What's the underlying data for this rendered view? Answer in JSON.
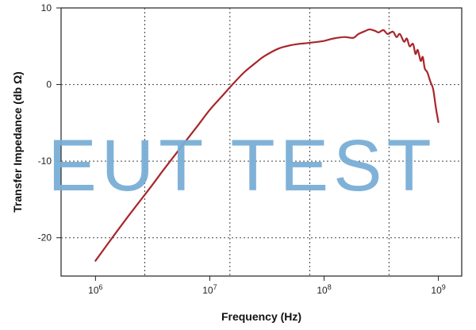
{
  "watermark": "EUT TEST",
  "chart_data": {
    "type": "line",
    "xlabel": "Frequency (Hz)",
    "ylabel": "Transfer Impedance (db Ω)",
    "x_scale": "log",
    "xlim": [
      500000,
      1600000000
    ],
    "ylim": [
      -25,
      10
    ],
    "x_ticks": [
      {
        "value": 1000000,
        "base": "10",
        "exp": "6"
      },
      {
        "value": 10000000,
        "base": "10",
        "exp": "7"
      },
      {
        "value": 100000000,
        "base": "10",
        "exp": "8"
      },
      {
        "value": 1000000000,
        "base": "10",
        "exp": "9"
      }
    ],
    "y_ticks": [
      {
        "value": 10,
        "label": "10"
      },
      {
        "value": 0,
        "label": "0"
      },
      {
        "value": -10,
        "label": "-10"
      },
      {
        "value": -20,
        "label": "-20"
      }
    ],
    "grid": true,
    "grid_x": [
      2700000,
      15000000,
      75000000,
      370000000
    ],
    "grid_y": [
      0,
      -10,
      -20
    ],
    "series": [
      {
        "color": "#a8262b",
        "x": [
          1000000,
          1500000,
          2000000,
          3000000,
          4000000,
          6000000,
          8000000,
          10000000,
          13000000,
          16000000,
          20000000,
          25000000,
          30000000,
          40000000,
          50000000,
          60000000,
          70000000,
          80000000,
          100000000,
          120000000,
          150000000,
          180000000,
          200000000,
          230000000,
          250000000,
          280000000,
          300000000,
          330000000,
          360000000,
          400000000,
          430000000,
          460000000,
          500000000,
          530000000,
          560000000,
          600000000,
          630000000,
          660000000,
          700000000,
          730000000,
          760000000,
          800000000,
          850000000,
          900000000,
          950000000,
          1000000000
        ],
        "y": [
          -23,
          -19.4,
          -16.9,
          -13.5,
          -11.0,
          -7.6,
          -5.2,
          -3.3,
          -1.4,
          0.1,
          1.6,
          2.8,
          3.7,
          4.7,
          5.1,
          5.3,
          5.4,
          5.5,
          5.7,
          6.0,
          6.2,
          6.1,
          6.6,
          7.0,
          7.2,
          7.0,
          6.8,
          7.1,
          6.6,
          6.9,
          6.2,
          6.6,
          5.6,
          6.0,
          5.0,
          5.3,
          4.0,
          4.5,
          3.1,
          3.6,
          2.1,
          1.6,
          0.4,
          -0.6,
          -3.0,
          -4.9
        ]
      }
    ]
  }
}
